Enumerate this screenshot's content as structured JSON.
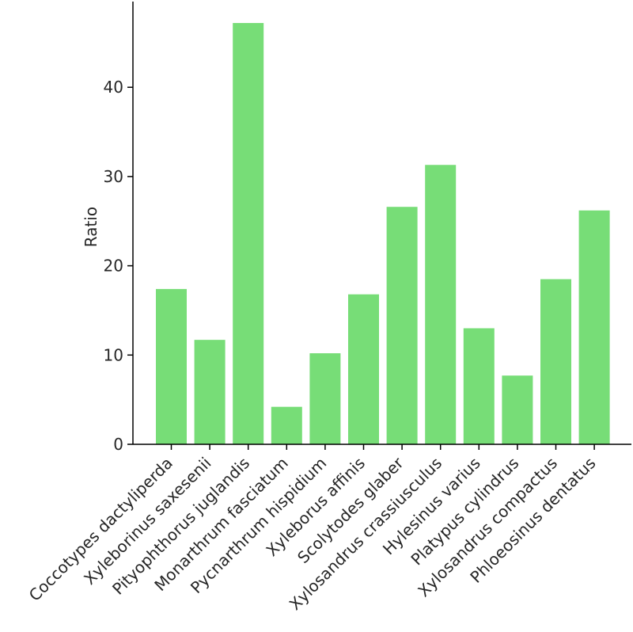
{
  "chart_data": {
    "type": "bar",
    "title": "",
    "xlabel": "",
    "ylabel": "Ratio",
    "categories": [
      "Coccotypes dactyliperda",
      "Xyleborinus saxesenii",
      "Pityophthorus juglandis",
      "Monarthrum fasciatum",
      "Pycnarthrum hispidium",
      "Xyleborus affinis",
      "Scolytodes glaber",
      "Xylosandrus crassiusculus",
      "Hylesinus varius",
      "Platypus cylindrus",
      "Xylosandrus compactus",
      "Phloeosinus dentatus"
    ],
    "values": [
      17.4,
      11.7,
      47.2,
      4.2,
      10.2,
      16.8,
      26.6,
      31.3,
      13.0,
      7.7,
      18.5,
      26.2
    ],
    "ylim": [
      0,
      49.6
    ],
    "yticks": [
      0,
      10,
      20,
      30,
      40
    ],
    "grid": false,
    "bar_color": "#77dd77",
    "axis_color": "#000000",
    "text_color": "#262626"
  }
}
